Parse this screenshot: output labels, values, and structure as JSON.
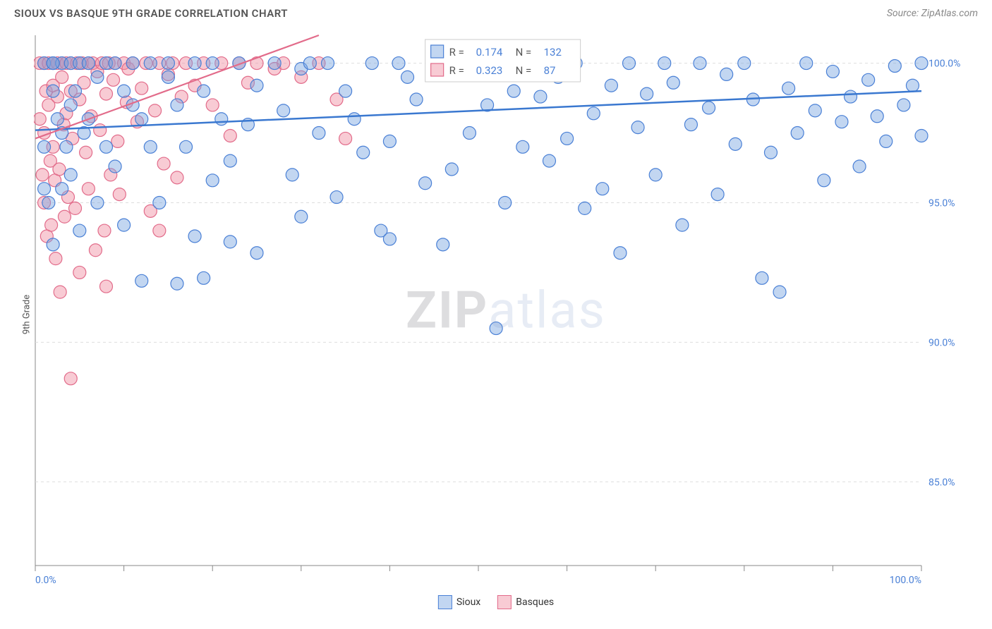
{
  "title": "SIOUX VS BASQUE 9TH GRADE CORRELATION CHART",
  "source": "Source: ZipAtlas.com",
  "y_axis_label": "9th Grade",
  "watermark_bold": "ZIP",
  "watermark_light": "atlas",
  "chart": {
    "type": "scatter",
    "xlim": [
      0,
      100
    ],
    "ylim": [
      82,
      101
    ],
    "x_ticks": [
      0,
      10,
      20,
      30,
      40,
      50,
      60,
      70,
      80,
      90,
      100
    ],
    "x_tick_labels": {
      "0": "0.0%",
      "100": "100.0%"
    },
    "y_gridlines": [
      85,
      90,
      95,
      100
    ],
    "y_tick_labels": {
      "85": "85.0%",
      "90": "90.0%",
      "95": "95.0%",
      "100": "100.0%"
    },
    "grid_color": "#dddddd",
    "border_color": "#888888",
    "background": "#ffffff",
    "tick_label_color": "#4a80d6",
    "point_radius": 9,
    "point_stroke_width": 1.2,
    "series": [
      {
        "name": "Sioux",
        "fill": "rgba(120,165,225,0.45)",
        "stroke": "#4a80d6",
        "trend": {
          "x1": 0,
          "y1": 97.6,
          "x2": 100,
          "y2": 99.0,
          "color": "#3a78d0",
          "width": 2.5
        },
        "points": [
          [
            1,
            100
          ],
          [
            1,
            97
          ],
          [
            1.5,
            95
          ],
          [
            2,
            99
          ],
          [
            2,
            100
          ],
          [
            2,
            93.5
          ],
          [
            2.5,
            98
          ],
          [
            3,
            100
          ],
          [
            3,
            95.5
          ],
          [
            3.5,
            97
          ],
          [
            4,
            100
          ],
          [
            4,
            96
          ],
          [
            4.5,
            99
          ],
          [
            5,
            94
          ],
          [
            5,
            100
          ],
          [
            5.5,
            97.5
          ],
          [
            6,
            98
          ],
          [
            6,
            100
          ],
          [
            7,
            95
          ],
          [
            7,
            99.5
          ],
          [
            8,
            100
          ],
          [
            8,
            97
          ],
          [
            9,
            96.3
          ],
          [
            9,
            100
          ],
          [
            10,
            99
          ],
          [
            10,
            94.2
          ],
          [
            11,
            100
          ],
          [
            12,
            98
          ],
          [
            12,
            92.2
          ],
          [
            13,
            100
          ],
          [
            13,
            97
          ],
          [
            14,
            95
          ],
          [
            15,
            99.5
          ],
          [
            15,
            100
          ],
          [
            16,
            98.5
          ],
          [
            17,
            97
          ],
          [
            18,
            100
          ],
          [
            18,
            93.8
          ],
          [
            19,
            99
          ],
          [
            20,
            95.8
          ],
          [
            20,
            100
          ],
          [
            21,
            98
          ],
          [
            22,
            96.5
          ],
          [
            23,
            100
          ],
          [
            24,
            97.8
          ],
          [
            25,
            99.2
          ],
          [
            25,
            93.2
          ],
          [
            27,
            100
          ],
          [
            28,
            98.3
          ],
          [
            29,
            96
          ],
          [
            30,
            99.8
          ],
          [
            30,
            94.5
          ],
          [
            31,
            100
          ],
          [
            32,
            97.5
          ],
          [
            33,
            100
          ],
          [
            34,
            95.2
          ],
          [
            35,
            99
          ],
          [
            36,
            98
          ],
          [
            37,
            96.8
          ],
          [
            38,
            100
          ],
          [
            39,
            94
          ],
          [
            40,
            97.2
          ],
          [
            41,
            100
          ],
          [
            42,
            99.5
          ],
          [
            43,
            98.7
          ],
          [
            44,
            95.7
          ],
          [
            45,
            100
          ],
          [
            46,
            93.5
          ],
          [
            47,
            96.2
          ],
          [
            48,
            99.8
          ],
          [
            49,
            97.5
          ],
          [
            50,
            100
          ],
          [
            51,
            98.5
          ],
          [
            52,
            90.5
          ],
          [
            53,
            95
          ],
          [
            54,
            99
          ],
          [
            55,
            97
          ],
          [
            56,
            100
          ],
          [
            57,
            98.8
          ],
          [
            58,
            96.5
          ],
          [
            59,
            99.5
          ],
          [
            60,
            97.3
          ],
          [
            61,
            100
          ],
          [
            62,
            94.8
          ],
          [
            63,
            98.2
          ],
          [
            64,
            95.5
          ],
          [
            65,
            99.2
          ],
          [
            66,
            93.2
          ],
          [
            67,
            100
          ],
          [
            68,
            97.7
          ],
          [
            69,
            98.9
          ],
          [
            70,
            96
          ],
          [
            71,
            100
          ],
          [
            72,
            99.3
          ],
          [
            73,
            94.2
          ],
          [
            74,
            97.8
          ],
          [
            75,
            100
          ],
          [
            76,
            98.4
          ],
          [
            77,
            95.3
          ],
          [
            78,
            99.6
          ],
          [
            79,
            97.1
          ],
          [
            80,
            100
          ],
          [
            81,
            98.7
          ],
          [
            82,
            92.3
          ],
          [
            83,
            96.8
          ],
          [
            84,
            91.8
          ],
          [
            85,
            99.1
          ],
          [
            86,
            97.5
          ],
          [
            87,
            100
          ],
          [
            88,
            98.3
          ],
          [
            89,
            95.8
          ],
          [
            90,
            99.7
          ],
          [
            91,
            97.9
          ],
          [
            92,
            98.8
          ],
          [
            93,
            96.3
          ],
          [
            94,
            99.4
          ],
          [
            95,
            98.1
          ],
          [
            96,
            97.2
          ],
          [
            97,
            99.9
          ],
          [
            98,
            98.5
          ],
          [
            99,
            99.2
          ],
          [
            100,
            100
          ],
          [
            100,
            97.4
          ],
          [
            11,
            98.5
          ],
          [
            1,
            95.5
          ],
          [
            2,
            100
          ],
          [
            3,
            97.5
          ],
          [
            4,
            98.5
          ],
          [
            16,
            92.1
          ],
          [
            19,
            92.3
          ],
          [
            22,
            93.6
          ],
          [
            40,
            93.7
          ]
        ]
      },
      {
        "name": "Basques",
        "fill": "rgba(240,140,160,0.45)",
        "stroke": "#e26b8a",
        "trend": {
          "x1": 0,
          "y1": 97.3,
          "x2": 32,
          "y2": 101,
          "color": "#e26b8a",
          "width": 2.2
        },
        "points": [
          [
            0.5,
            100
          ],
          [
            0.5,
            98
          ],
          [
            0.8,
            96
          ],
          [
            1,
            100
          ],
          [
            1,
            95
          ],
          [
            1,
            97.5
          ],
          [
            1.2,
            99
          ],
          [
            1.3,
            93.8
          ],
          [
            1.5,
            100
          ],
          [
            1.5,
            98.5
          ],
          [
            1.7,
            96.5
          ],
          [
            1.8,
            94.2
          ],
          [
            2,
            100
          ],
          [
            2,
            99.2
          ],
          [
            2,
            97
          ],
          [
            2.2,
            95.8
          ],
          [
            2.3,
            93
          ],
          [
            2.5,
            100
          ],
          [
            2.5,
            98.8
          ],
          [
            2.7,
            96.2
          ],
          [
            2.8,
            91.8
          ],
          [
            3,
            100
          ],
          [
            3,
            99.5
          ],
          [
            3.2,
            97.8
          ],
          [
            3.3,
            94.5
          ],
          [
            3.5,
            100
          ],
          [
            3.5,
            98.2
          ],
          [
            3.7,
            95.2
          ],
          [
            4,
            100
          ],
          [
            4,
            99
          ],
          [
            4.2,
            97.3
          ],
          [
            4.5,
            94.8
          ],
          [
            4.7,
            100
          ],
          [
            5,
            98.7
          ],
          [
            5,
            92.5
          ],
          [
            5.3,
            100
          ],
          [
            5.5,
            99.3
          ],
          [
            5.7,
            96.8
          ],
          [
            6,
            100
          ],
          [
            6,
            95.5
          ],
          [
            6.3,
            98.1
          ],
          [
            6.5,
            100
          ],
          [
            6.8,
            93.3
          ],
          [
            7,
            99.7
          ],
          [
            7.3,
            97.6
          ],
          [
            7.5,
            100
          ],
          [
            7.8,
            94
          ],
          [
            8,
            98.9
          ],
          [
            8.3,
            100
          ],
          [
            8.5,
            96
          ],
          [
            8.8,
            99.4
          ],
          [
            9,
            100
          ],
          [
            9.3,
            97.2
          ],
          [
            9.5,
            95.3
          ],
          [
            10,
            100
          ],
          [
            10.3,
            98.6
          ],
          [
            10.5,
            99.8
          ],
          [
            11,
            100
          ],
          [
            11.5,
            97.9
          ],
          [
            12,
            99.1
          ],
          [
            12.5,
            100
          ],
          [
            13,
            94.7
          ],
          [
            13.5,
            98.3
          ],
          [
            14,
            100
          ],
          [
            14.5,
            96.4
          ],
          [
            15,
            99.6
          ],
          [
            15.5,
            100
          ],
          [
            16,
            95.9
          ],
          [
            16.5,
            98.8
          ],
          [
            17,
            100
          ],
          [
            18,
            99.2
          ],
          [
            19,
            100
          ],
          [
            20,
            98.5
          ],
          [
            21,
            100
          ],
          [
            22,
            97.4
          ],
          [
            23,
            100
          ],
          [
            24,
            99.3
          ],
          [
            25,
            100
          ],
          [
            27,
            99.8
          ],
          [
            28,
            100
          ],
          [
            30,
            99.5
          ],
          [
            32,
            100
          ],
          [
            34,
            98.7
          ],
          [
            35,
            97.3
          ],
          [
            4,
            88.7
          ],
          [
            8,
            92.0
          ],
          [
            14,
            94.0
          ]
        ]
      }
    ]
  },
  "stats_box": {
    "rows": [
      {
        "color_fill": "rgba(120,165,225,0.45)",
        "color_stroke": "#4a80d6",
        "r_label": "R =",
        "r_val": "0.174",
        "n_label": "N =",
        "n_val": "132"
      },
      {
        "color_fill": "rgba(240,140,160,0.45)",
        "color_stroke": "#e26b8a",
        "r_label": "R =",
        "r_val": "0.323",
        "n_label": "N =",
        "n_val": "87"
      }
    ]
  },
  "legend": {
    "sioux": "Sioux",
    "basques": "Basques"
  }
}
